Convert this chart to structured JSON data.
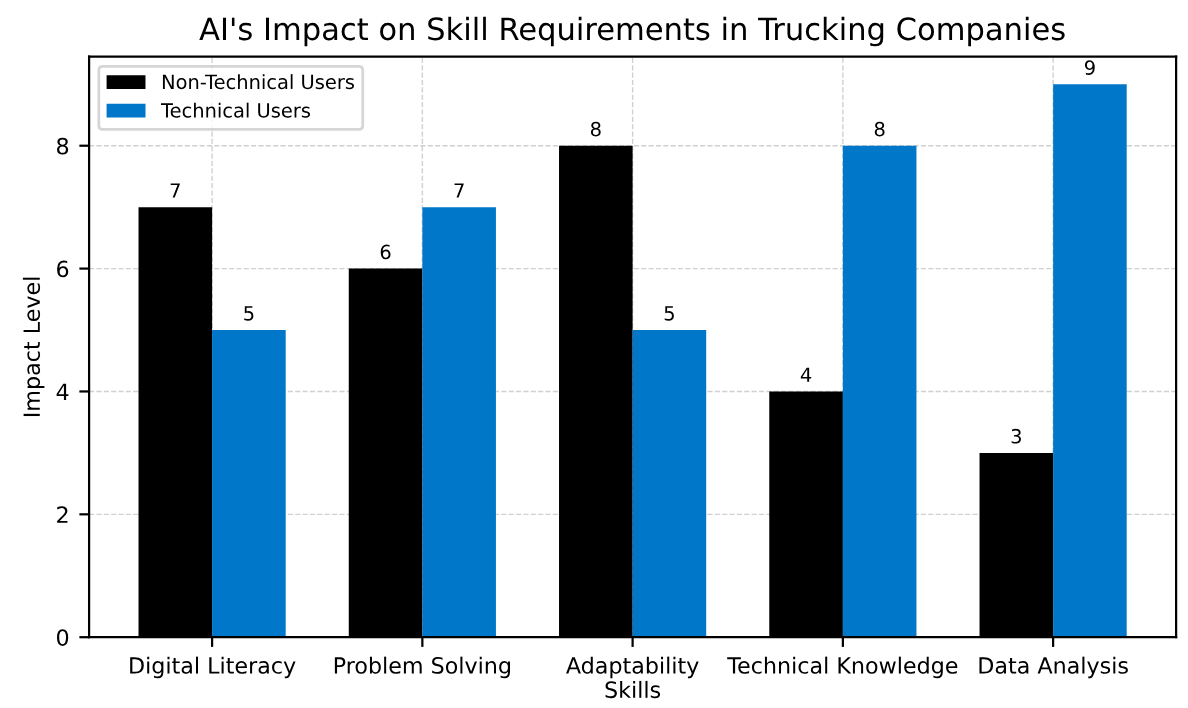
{
  "chart_data": {
    "type": "bar",
    "title": "AI's Impact on Skill Requirements in Trucking Companies",
    "xlabel": "Skills",
    "ylabel": "Impact Level",
    "categories": [
      "Digital Literacy",
      "Problem Solving",
      "Adaptability",
      "Technical Knowledge",
      "Data Analysis"
    ],
    "series": [
      {
        "name": "Non-Technical Users",
        "color": "#000000",
        "values": [
          7,
          6,
          8,
          4,
          3
        ]
      },
      {
        "name": "Technical Users",
        "color": "#0077c8",
        "values": [
          5,
          7,
          5,
          8,
          9
        ]
      }
    ],
    "ylim": [
      0,
      9.45
    ],
    "yticks": [
      0,
      2,
      4,
      6,
      8
    ],
    "grid": true,
    "legend": "top left",
    "data_labels": true
  }
}
